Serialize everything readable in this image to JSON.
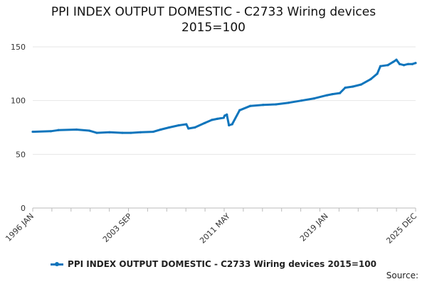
{
  "chart_data": {
    "type": "line",
    "title_lines": [
      "PPI INDEX OUTPUT DOMESTIC - C2733 Wiring devices",
      "2015=100"
    ],
    "xlabel": "",
    "ylabel": "",
    "ylim": [
      0,
      150
    ],
    "yticks": [
      0,
      50,
      100,
      150
    ],
    "x_tick_labels": [
      "1996 JAN",
      "2003 SEP",
      "2011 MAY",
      "2019 JAN",
      "2025 DEC"
    ],
    "x_range": [
      "1996 JAN",
      "2025 DEC"
    ],
    "grid": "horizontal",
    "legend_position": "bottom",
    "series": [
      {
        "name": "PPI INDEX OUTPUT DOMESTIC - C2733 Wiring devices 2015=100",
        "color": "#0f75bc",
        "points": [
          [
            "1996-01",
            71
          ],
          [
            "1997-06",
            71.5
          ],
          [
            "1998-01",
            72.5
          ],
          [
            "1999-06",
            73
          ],
          [
            "2000-06",
            72
          ],
          [
            "2001-01",
            70
          ],
          [
            "2002-01",
            70.5
          ],
          [
            "2003-01",
            70
          ],
          [
            "2003-09",
            70
          ],
          [
            "2004-06",
            70.5
          ],
          [
            "2005-06",
            71
          ],
          [
            "2006-01",
            73
          ],
          [
            "2006-09",
            75
          ],
          [
            "2007-06",
            77
          ],
          [
            "2008-01",
            78
          ],
          [
            "2008-03",
            74
          ],
          [
            "2008-09",
            75
          ],
          [
            "2009-06",
            79
          ],
          [
            "2010-01",
            82
          ],
          [
            "2010-06",
            83
          ],
          [
            "2010-12",
            84
          ],
          [
            "2011-01",
            86
          ],
          [
            "2011-03",
            87
          ],
          [
            "2011-05",
            77
          ],
          [
            "2011-08",
            78
          ],
          [
            "2012-03",
            91
          ],
          [
            "2013-01",
            95
          ],
          [
            "2014-01",
            96
          ],
          [
            "2015-01",
            96.5
          ],
          [
            "2016-01",
            98
          ],
          [
            "2017-01",
            100
          ],
          [
            "2018-01",
            102
          ],
          [
            "2019-01",
            105
          ],
          [
            "2019-06",
            106
          ],
          [
            "2020-01",
            107
          ],
          [
            "2020-06",
            112
          ],
          [
            "2021-01",
            113
          ],
          [
            "2021-09",
            115
          ],
          [
            "2022-06",
            120
          ],
          [
            "2022-12",
            125
          ],
          [
            "2023-03",
            132
          ],
          [
            "2023-10",
            133
          ],
          [
            "2024-03",
            136
          ],
          [
            "2024-06",
            138
          ],
          [
            "2024-09",
            134
          ],
          [
            "2025-01",
            133
          ],
          [
            "2025-05",
            134
          ],
          [
            "2025-09",
            134
          ],
          [
            "2025-12",
            135
          ]
        ]
      }
    ]
  },
  "legend": {
    "label": "PPI INDEX OUTPUT DOMESTIC - C2733 Wiring devices 2015=100"
  },
  "source": {
    "label": "Source:"
  }
}
